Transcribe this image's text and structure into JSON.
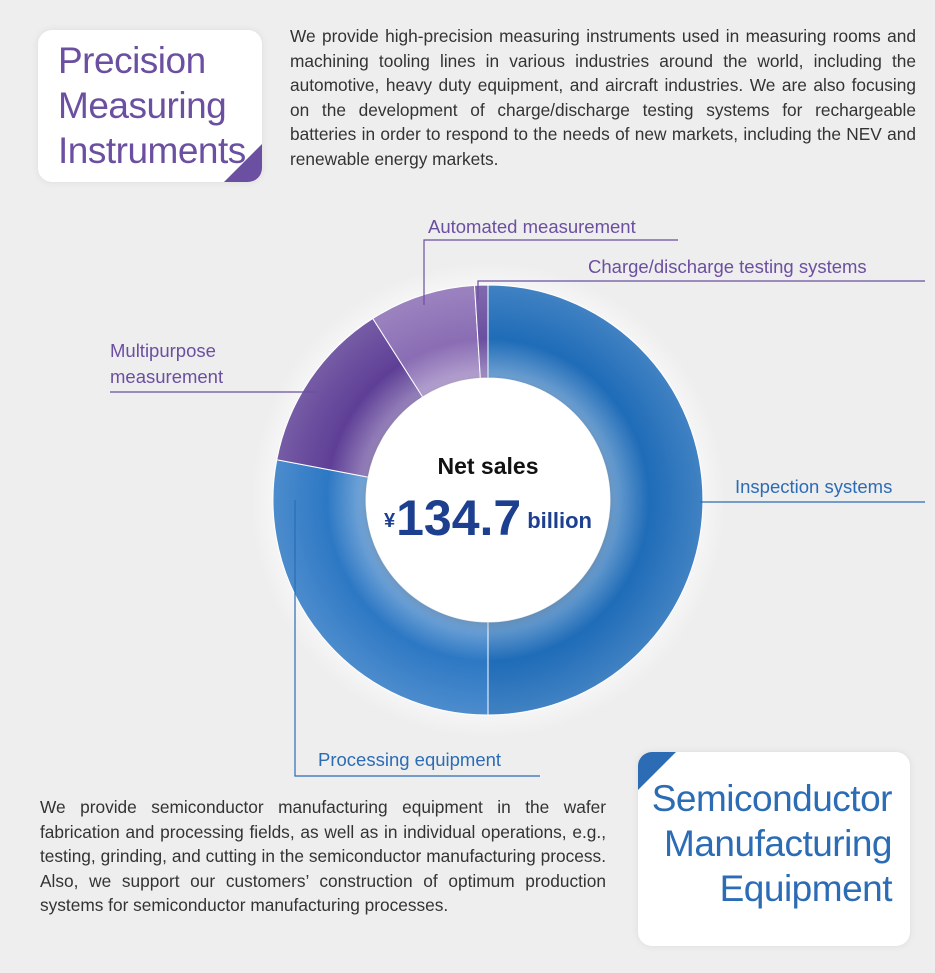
{
  "top_section": {
    "title_lines": [
      "Precision",
      "Measuring",
      "Instruments"
    ],
    "text": "We provide high-precision measuring instruments used in measuring rooms and machining tooling lines in various industries around the world, including the automotive, heavy duty equipment, and aircraft industries. We are also focusing on the development of charge/discharge testing systems for rechargeable batteries in order to respond to the needs of new markets, including the NEV and renewable energy markets."
  },
  "chart_data": {
    "type": "donut",
    "categories": [
      "Inspection systems",
      "Processing equipment",
      "Multipurpose measurement",
      "Automated measurement",
      "Charge/discharge testing systems"
    ],
    "values": [
      50,
      28,
      13,
      8,
      1
    ],
    "colors": [
      "#1f6cb8",
      "#2d78c4",
      "#5e3f96",
      "#8a6db4",
      "#6b4fa0"
    ],
    "label_colors": [
      "#2b6cb5",
      "#2b6cb5",
      "#6b4fa0",
      "#6b4fa0",
      "#6b4fa0"
    ],
    "center": {
      "label": "Net sales",
      "currency": "¥",
      "value": 134.7,
      "unit": "billion"
    }
  },
  "bottom_section": {
    "title_lines": [
      "Semiconductor",
      "Manufacturing",
      "Equipment"
    ],
    "text": "We provide semiconductor manufacturing equipment in the wafer fabrication and processing fields, as well as in individual operations, e.g., testing, grinding, and cutting in the semiconductor manufacturing process. Also, we support our customers’ construction of optimum production systems for semiconductor manufacturing processes."
  }
}
